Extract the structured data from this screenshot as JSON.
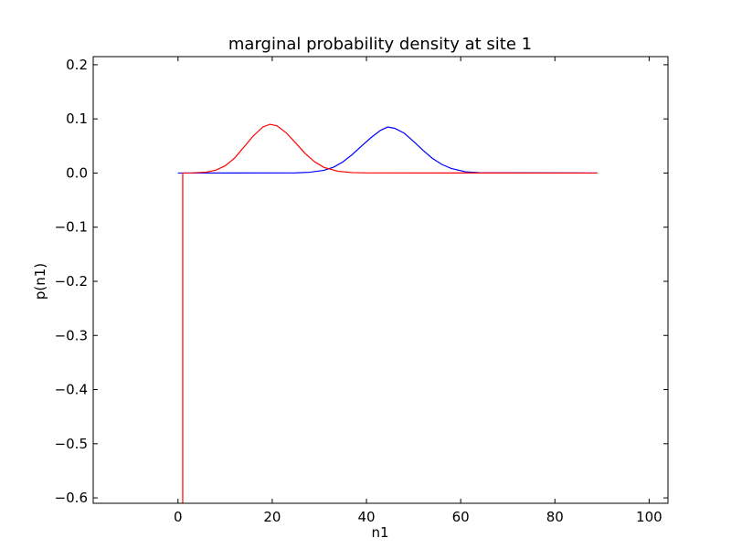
{
  "chart_data": {
    "type": "line",
    "title": "marginal probability density at site 1",
    "xlabel": "n1",
    "ylabel": "p(n1)",
    "xlim": [
      -18,
      104
    ],
    "ylim": [
      -0.61,
      0.215
    ],
    "xticks": [
      0,
      20,
      40,
      60,
      80,
      100
    ],
    "xtick_labels": [
      "0",
      "20",
      "40",
      "60",
      "80",
      "100"
    ],
    "yticks": [
      -0.6,
      -0.5,
      -0.4,
      -0.3,
      -0.2,
      -0.1,
      0.0,
      0.1,
      0.2
    ],
    "ytick_labels": [
      "−0.6",
      "−0.5",
      "−0.4",
      "−0.3",
      "−0.2",
      "−0.1",
      "0.0",
      "0.1",
      "0.2"
    ],
    "grid": false,
    "series": [
      {
        "color": "#0000ff",
        "x": [
          0,
          25,
          28,
          31,
          33,
          35,
          37,
          39,
          41,
          43,
          44.5,
          46,
          48,
          50,
          52,
          54,
          56,
          58,
          61,
          64,
          89
        ],
        "y": [
          0.0,
          0.0003,
          0.0015,
          0.005,
          0.0108,
          0.0206,
          0.0343,
          0.0502,
          0.0657,
          0.0789,
          0.085,
          0.0826,
          0.0737,
          0.0584,
          0.042,
          0.0271,
          0.0159,
          0.0084,
          0.0023,
          0.0005,
          0.0
        ]
      },
      {
        "color": "#ff0000",
        "x": [
          1,
          1,
          3,
          6,
          8,
          10,
          12,
          14,
          16,
          18,
          19.5,
          21,
          23,
          25,
          27,
          29,
          31,
          34,
          37,
          40,
          89
        ],
        "y": [
          -0.61,
          0.0,
          0.0002,
          0.0017,
          0.0053,
          0.0133,
          0.0275,
          0.0479,
          0.0688,
          0.0849,
          0.09,
          0.0874,
          0.0741,
          0.0553,
          0.0361,
          0.0207,
          0.0104,
          0.0032,
          0.0008,
          0.0002,
          0.0
        ]
      }
    ]
  }
}
